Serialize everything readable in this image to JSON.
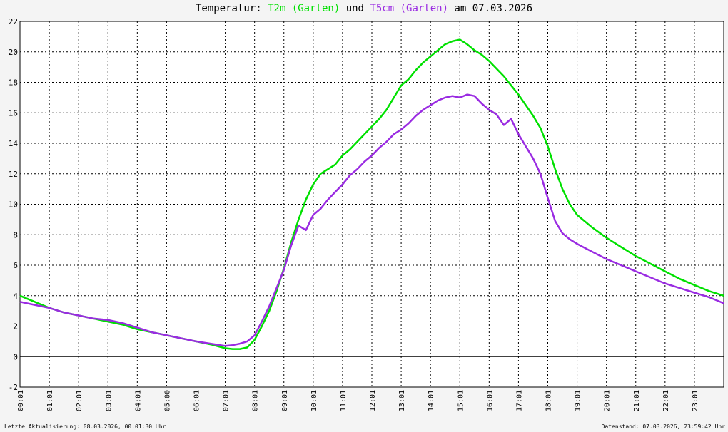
{
  "chart_data": {
    "type": "line",
    "title": {
      "prefix": "Temperatur:",
      "series1_label": "T2m (Garten)",
      "joiner": "und",
      "series2_label": "T5cm (Garten)",
      "suffix": "am 07.03.2026"
    },
    "ylim": [
      -2,
      22
    ],
    "y_ticks": [
      "-2",
      "0",
      "2",
      "4",
      "6",
      "8",
      "10",
      "12",
      "14",
      "16",
      "18",
      "20",
      "22"
    ],
    "xlim_hours": [
      0,
      24
    ],
    "x_ticks": [
      "00:01",
      "01:01",
      "02:01",
      "03:01",
      "04:01",
      "05:00",
      "06:01",
      "07:01",
      "08:01",
      "09:01",
      "10:01",
      "11:01",
      "12:01",
      "13:01",
      "14:01",
      "15:01",
      "16:01",
      "17:01",
      "18:01",
      "19:01",
      "20:01",
      "21:01",
      "22:01",
      "23:01"
    ],
    "grid": true,
    "series": [
      {
        "name": "T2m (Garten)",
        "color": "#00e000",
        "x": [
          0,
          0.5,
          1,
          1.5,
          2,
          2.5,
          3,
          3.5,
          4,
          4.5,
          5,
          5.5,
          6,
          6.5,
          7,
          7.25,
          7.5,
          7.75,
          8,
          8.25,
          8.5,
          8.75,
          9,
          9.25,
          9.5,
          9.75,
          10,
          10.25,
          10.5,
          10.75,
          11,
          11.25,
          11.5,
          11.75,
          12,
          12.25,
          12.5,
          12.75,
          13,
          13.25,
          13.5,
          13.75,
          14,
          14.25,
          14.5,
          14.75,
          15,
          15.25,
          15.5,
          15.75,
          16,
          16.25,
          16.5,
          16.75,
          17,
          17.25,
          17.5,
          17.75,
          18,
          18.25,
          18.5,
          18.75,
          19,
          19.5,
          20,
          20.5,
          21,
          21.5,
          22,
          22.5,
          23,
          23.5,
          24
        ],
        "y": [
          4.0,
          3.6,
          3.2,
          2.9,
          2.7,
          2.5,
          2.3,
          2.1,
          1.8,
          1.6,
          1.4,
          1.2,
          1.0,
          0.8,
          0.55,
          0.5,
          0.5,
          0.6,
          1.1,
          2.0,
          3.0,
          4.3,
          5.8,
          7.5,
          9.0,
          10.3,
          11.3,
          12.0,
          12.3,
          12.6,
          13.2,
          13.6,
          14.1,
          14.6,
          15.1,
          15.6,
          16.2,
          17.0,
          17.8,
          18.2,
          18.8,
          19.3,
          19.7,
          20.1,
          20.5,
          20.7,
          20.8,
          20.5,
          20.1,
          19.8,
          19.4,
          18.9,
          18.4,
          17.8,
          17.2,
          16.5,
          15.8,
          15.0,
          13.8,
          12.3,
          11.0,
          10.0,
          9.3,
          8.5,
          7.8,
          7.2,
          6.6,
          6.1,
          5.6,
          5.1,
          4.7,
          4.3,
          4.0
        ]
      },
      {
        "name": "T5cm (Garten)",
        "color": "#9a2be2",
        "x": [
          0,
          0.5,
          1,
          1.5,
          2,
          2.5,
          3,
          3.5,
          4,
          4.5,
          5,
          5.5,
          6,
          6.5,
          7,
          7.25,
          7.5,
          7.75,
          8,
          8.25,
          8.5,
          8.75,
          9,
          9.25,
          9.5,
          9.75,
          10,
          10.25,
          10.5,
          10.75,
          11,
          11.25,
          11.5,
          11.75,
          12,
          12.25,
          12.5,
          12.75,
          13,
          13.25,
          13.5,
          13.75,
          14,
          14.25,
          14.5,
          14.75,
          15,
          15.25,
          15.5,
          15.75,
          16,
          16.25,
          16.5,
          16.75,
          17,
          17.25,
          17.5,
          17.75,
          18,
          18.25,
          18.5,
          18.75,
          19,
          19.5,
          20,
          20.5,
          21,
          21.5,
          22,
          22.5,
          23,
          23.5,
          24
        ],
        "y": [
          3.6,
          3.4,
          3.2,
          2.9,
          2.7,
          2.5,
          2.4,
          2.2,
          1.9,
          1.6,
          1.4,
          1.2,
          1.0,
          0.85,
          0.7,
          0.75,
          0.85,
          1.0,
          1.4,
          2.3,
          3.3,
          4.5,
          5.7,
          7.3,
          8.6,
          8.3,
          9.3,
          9.7,
          10.3,
          10.8,
          11.3,
          11.9,
          12.3,
          12.8,
          13.2,
          13.7,
          14.1,
          14.6,
          14.9,
          15.3,
          15.8,
          16.2,
          16.5,
          16.8,
          17.0,
          17.1,
          17.0,
          17.2,
          17.1,
          16.6,
          16.2,
          15.9,
          15.2,
          15.6,
          14.6,
          13.8,
          13.0,
          12.0,
          10.4,
          8.9,
          8.1,
          7.7,
          7.4,
          6.9,
          6.4,
          6.0,
          5.6,
          5.2,
          4.8,
          4.5,
          4.2,
          3.9,
          3.5
        ]
      }
    ]
  },
  "footer": {
    "left": "Letzte Aktualisierung: 08.03.2026, 00:01:30 Uhr",
    "right": "Datenstand: 07.03.2026, 23:59:42 Uhr"
  }
}
